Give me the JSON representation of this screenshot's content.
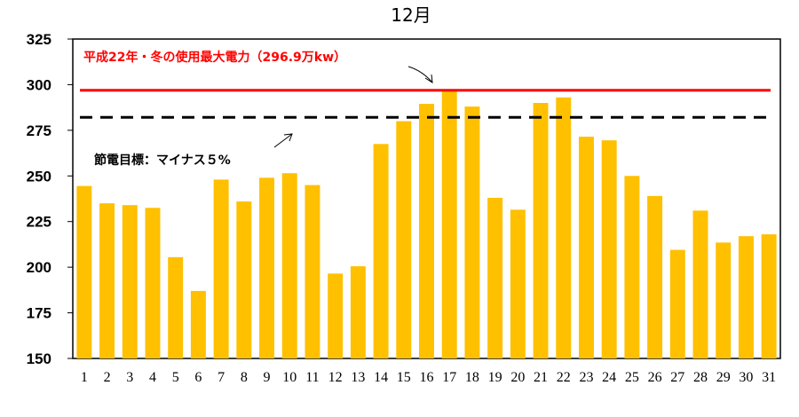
{
  "chart_data": {
    "type": "bar",
    "title": "12月",
    "categories": [
      "1",
      "2",
      "3",
      "4",
      "5",
      "6",
      "7",
      "8",
      "9",
      "10",
      "11",
      "12",
      "13",
      "14",
      "15",
      "16",
      "17",
      "18",
      "19",
      "20",
      "21",
      "22",
      "23",
      "24",
      "25",
      "26",
      "27",
      "28",
      "29",
      "30",
      "31"
    ],
    "values": [
      244.5,
      235,
      234,
      232.5,
      205.5,
      187,
      248,
      236,
      249,
      251.5,
      245,
      196.5,
      200.5,
      267.5,
      280,
      289.5,
      297,
      288,
      238,
      231.5,
      290,
      293,
      271.5,
      269.5,
      250,
      239,
      209.5,
      231,
      213.5,
      217,
      218
    ],
    "ylim": [
      150,
      325
    ],
    "yticks": [
      150,
      175,
      200,
      225,
      250,
      275,
      300,
      325
    ],
    "bar_color": "#ffc000",
    "annotations": {
      "peak": {
        "label": "平成22年・冬の使用最大電力（296.9万kw）",
        "value": 296.9,
        "color": "#ff0000"
      },
      "target": {
        "label": "節電目標：マイナス５%",
        "value": 282.1,
        "color": "#000000"
      }
    }
  }
}
